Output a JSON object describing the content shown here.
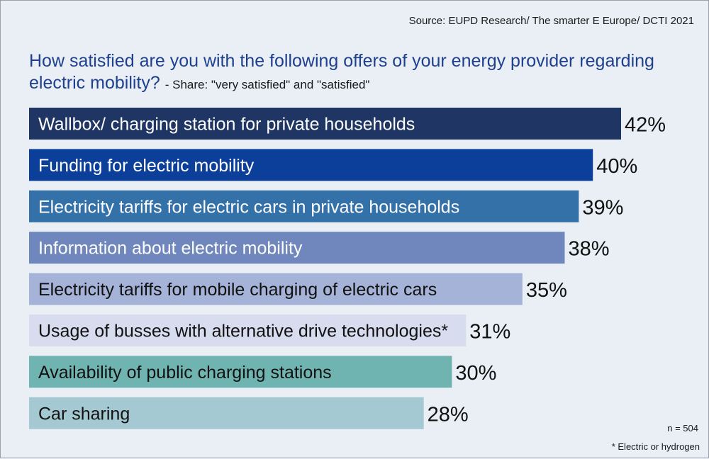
{
  "source": "Source: EUPD Research/ The smarter E Europe/ DCTI 2021",
  "title": "How satisfied are you with the following offers of your energy provider regarding electric mobility?",
  "subtitle": "- Share: \"very satisfied\" and \"satisfied\"",
  "n_note": "n = 504",
  "footnote": "* Electric or hydrogen",
  "chart_data": {
    "type": "bar",
    "orientation": "horizontal",
    "unit": "%",
    "categories": [
      "Wallbox/ charging station for private households",
      "Funding for electric mobility",
      "Electricity tariffs for electric cars in private households",
      "Information about electric mobility",
      "Electricity tariffs for mobile charging of electric cars",
      "Usage of busses with alternative drive technologies*",
      "Availability of public charging stations",
      "Car sharing"
    ],
    "values": [
      42,
      40,
      39,
      38,
      35,
      31,
      30,
      28
    ],
    "value_labels": [
      "42%",
      "40%",
      "39%",
      "38%",
      "35%",
      "31%",
      "30%",
      "28%"
    ],
    "colors": [
      "#1f3564",
      "#0b3f9a",
      "#3471a8",
      "#6f87bc",
      "#a4b3d7",
      "#d7dcee",
      "#6fb4b0",
      "#a5c9d3"
    ],
    "label_colors": [
      "#ffffff",
      "#ffffff",
      "#ffffff",
      "#ffffff",
      "#111111",
      "#111111",
      "#111111",
      "#111111"
    ]
  }
}
